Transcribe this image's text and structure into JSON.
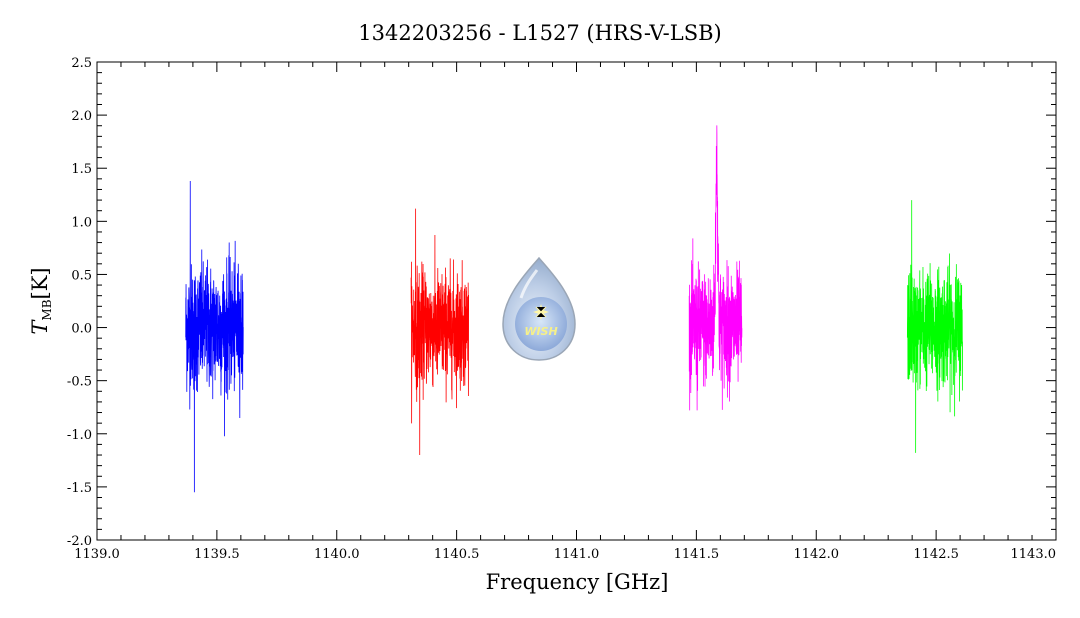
{
  "chart_data": {
    "type": "line",
    "title": "1342203256 - L1527 (HRS-V-LSB)",
    "xlabel": "Frequency [GHz]",
    "ylabel_main": "T",
    "ylabel_sub": "MB",
    "ylabel_unit": "[K]",
    "xlim": [
      1139.0,
      1143.0
    ],
    "ylim": [
      -2.0,
      2.5
    ],
    "xticks": [
      "1139.0",
      "1140.0",
      "1140.5",
      "1141.0",
      "1141.5",
      "1142.0",
      "1142.5",
      "1143.0"
    ],
    "xtick_values": [
      1139.0,
      1140.0,
      1140.5,
      1141.0,
      1141.5,
      1142.0,
      1142.5,
      1143.0
    ],
    "xtick_labels_all": [
      {
        "v": 1139.0,
        "t": "1139.0"
      },
      {
        "v": 1139.5,
        "t": "1139.5"
      },
      {
        "v": 1140.0,
        "t": "1140.0"
      },
      {
        "v": 1140.5,
        "t": "1140.5"
      },
      {
        "v": 1141.0,
        "t": "1141.0"
      },
      {
        "v": 1141.5,
        "t": "1141.5"
      },
      {
        "v": 1142.0,
        "t": "1142.0"
      },
      {
        "v": 1142.5,
        "t": "1142.5"
      },
      {
        "v": 1143.0,
        "t": "1143.0"
      }
    ],
    "ytick_labels": [
      {
        "v": 2.5,
        "t": "2.5"
      },
      {
        "v": 2.0,
        "t": "2.0"
      },
      {
        "v": 1.5,
        "t": "1.5"
      },
      {
        "v": 1.0,
        "t": "1.0"
      },
      {
        "v": 0.5,
        "t": "0.5"
      },
      {
        "v": 0.0,
        "t": "0.0"
      },
      {
        "v": -0.5,
        "t": "-0.5"
      },
      {
        "v": -1.0,
        "t": "-1.0"
      },
      {
        "v": -1.5,
        "t": "-1.5"
      },
      {
        "v": -2.0,
        "t": "-2.0"
      }
    ],
    "grid": false,
    "logo_text": "WISH",
    "series": [
      {
        "color": "#0000ff",
        "x_range": [
          1139.37,
          1139.61
        ],
        "noise": 0.42,
        "min": -1.55,
        "max": 1.38,
        "peak": null
      },
      {
        "color": "#ff0000",
        "x_range": [
          1140.31,
          1140.55
        ],
        "noise": 0.38,
        "min": -1.2,
        "max": 1.12,
        "peak": null
      },
      {
        "color": "#ff00ff",
        "x_range": [
          1141.47,
          1141.69
        ],
        "noise": 0.38,
        "min": -0.78,
        "max": 2.04,
        "peak": {
          "x": 1141.585,
          "height": 1.6
        }
      },
      {
        "color": "#00ff00",
        "x_range": [
          1142.38,
          1142.61
        ],
        "noise": 0.38,
        "min": -1.18,
        "max": 1.2,
        "peak": null
      }
    ]
  }
}
